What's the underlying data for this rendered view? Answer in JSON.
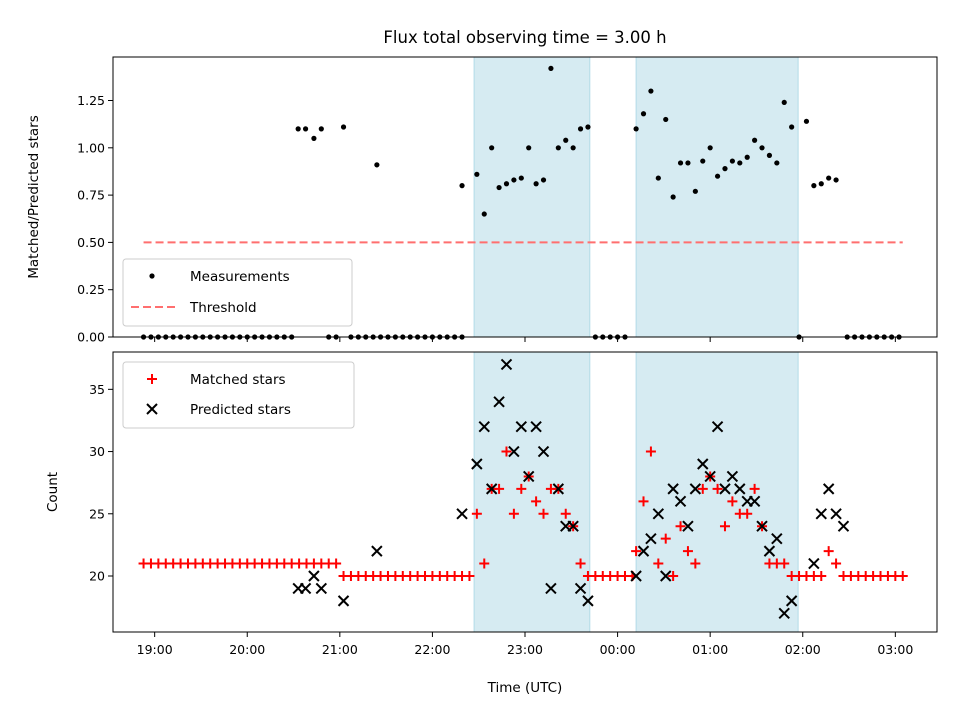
{
  "chart_data": [
    {
      "type": "scatter",
      "title": "Flux total observing time = 3.00 h",
      "ylabel": "Matched/Predicted stars",
      "ylim": [
        0,
        1.48
      ],
      "xlim": [
        18.55,
        27.45
      ],
      "yticks": [
        0.0,
        0.25,
        0.5,
        0.75,
        1.0,
        1.25
      ],
      "ytick_labels": [
        "0.00",
        "0.25",
        "0.50",
        "0.75",
        "1.00",
        "1.25"
      ],
      "shaded_intervals": [
        [
          22.45,
          23.7
        ],
        [
          24.2,
          25.95
        ]
      ],
      "legend": {
        "position": "lower-left",
        "entries": [
          "Measurements",
          "Threshold"
        ]
      },
      "series": [
        {
          "name": "Measurements",
          "marker": "dot",
          "color": "#000000",
          "points": [
            [
              18.88,
              0
            ],
            [
              18.96,
              0
            ],
            [
              19.04,
              0
            ],
            [
              19.12,
              0
            ],
            [
              19.2,
              0
            ],
            [
              19.28,
              0
            ],
            [
              19.36,
              0
            ],
            [
              19.44,
              0
            ],
            [
              19.52,
              0
            ],
            [
              19.6,
              0
            ],
            [
              19.68,
              0
            ],
            [
              19.76,
              0
            ],
            [
              19.84,
              0
            ],
            [
              19.92,
              0
            ],
            [
              20.0,
              0
            ],
            [
              20.08,
              0
            ],
            [
              20.16,
              0
            ],
            [
              20.24,
              0
            ],
            [
              20.32,
              0
            ],
            [
              20.4,
              0
            ],
            [
              20.48,
              0
            ],
            [
              20.55,
              1.1
            ],
            [
              20.63,
              1.1
            ],
            [
              20.72,
              1.05
            ],
            [
              20.8,
              1.1
            ],
            [
              20.88,
              0
            ],
            [
              20.96,
              0
            ],
            [
              21.04,
              1.11
            ],
            [
              21.12,
              0
            ],
            [
              21.2,
              0
            ],
            [
              21.28,
              0
            ],
            [
              21.36,
              0
            ],
            [
              21.4,
              0.91
            ],
            [
              21.44,
              0
            ],
            [
              21.52,
              0
            ],
            [
              21.6,
              0
            ],
            [
              21.68,
              0
            ],
            [
              21.76,
              0
            ],
            [
              21.84,
              0
            ],
            [
              21.92,
              0
            ],
            [
              22.0,
              0
            ],
            [
              22.08,
              0
            ],
            [
              22.16,
              0
            ],
            [
              22.24,
              0
            ],
            [
              22.32,
              0
            ],
            [
              22.32,
              0.8
            ],
            [
              22.48,
              0.86
            ],
            [
              22.56,
              0.65
            ],
            [
              22.64,
              1.0
            ],
            [
              22.72,
              0.79
            ],
            [
              22.8,
              0.81
            ],
            [
              22.88,
              0.83
            ],
            [
              22.96,
              0.84
            ],
            [
              23.04,
              1.0
            ],
            [
              23.12,
              0.81
            ],
            [
              23.2,
              0.83
            ],
            [
              23.28,
              1.42
            ],
            [
              23.36,
              1.0
            ],
            [
              23.44,
              1.04
            ],
            [
              23.52,
              1.0
            ],
            [
              23.6,
              1.1
            ],
            [
              23.68,
              1.11
            ],
            [
              23.76,
              0
            ],
            [
              23.84,
              0
            ],
            [
              23.92,
              0
            ],
            [
              24.0,
              0
            ],
            [
              24.08,
              0
            ],
            [
              24.2,
              1.1
            ],
            [
              24.28,
              1.18
            ],
            [
              24.36,
              1.3
            ],
            [
              24.44,
              0.84
            ],
            [
              24.52,
              1.15
            ],
            [
              24.6,
              0.74
            ],
            [
              24.68,
              0.92
            ],
            [
              24.76,
              0.92
            ],
            [
              24.84,
              0.77
            ],
            [
              24.92,
              0.93
            ],
            [
              25.0,
              1.0
            ],
            [
              25.08,
              0.85
            ],
            [
              25.16,
              0.89
            ],
            [
              25.24,
              0.93
            ],
            [
              25.32,
              0.92
            ],
            [
              25.4,
              0.95
            ],
            [
              25.48,
              1.04
            ],
            [
              25.56,
              1.0
            ],
            [
              25.64,
              0.96
            ],
            [
              25.72,
              0.92
            ],
            [
              25.8,
              1.24
            ],
            [
              25.88,
              1.11
            ],
            [
              25.96,
              0
            ],
            [
              26.04,
              1.14
            ],
            [
              26.12,
              0.8
            ],
            [
              26.2,
              0.81
            ],
            [
              26.28,
              0.84
            ],
            [
              26.36,
              0.83
            ],
            [
              26.48,
              0
            ],
            [
              26.56,
              0
            ],
            [
              26.64,
              0
            ],
            [
              26.72,
              0
            ],
            [
              26.8,
              0
            ],
            [
              26.88,
              0
            ],
            [
              26.96,
              0
            ],
            [
              27.04,
              0
            ]
          ]
        },
        {
          "name": "Threshold",
          "style": "dashed",
          "color": "#ff6f6f",
          "x": [
            18.88,
            27.08
          ],
          "y": [
            0.5,
            0.5
          ]
        }
      ]
    },
    {
      "type": "scatter",
      "xlabel": "Time (UTC)",
      "ylabel": "Count",
      "ylim": [
        15.5,
        38
      ],
      "xlim": [
        18.55,
        27.45
      ],
      "yticks": [
        20,
        25,
        30,
        35
      ],
      "ytick_labels": [
        "20",
        "25",
        "30",
        "35"
      ],
      "xticks": [
        19,
        20,
        21,
        22,
        23,
        24,
        25,
        26,
        27
      ],
      "xtick_labels": [
        "19:00",
        "20:00",
        "21:00",
        "22:00",
        "23:00",
        "00:00",
        "01:00",
        "02:00",
        "03:00"
      ],
      "shaded_intervals": [
        [
          22.45,
          23.7
        ],
        [
          24.2,
          25.95
        ]
      ],
      "legend": {
        "position": "top-left",
        "entries": [
          "Matched stars",
          "Predicted stars"
        ]
      },
      "series": [
        {
          "name": "Matched stars",
          "marker": "plus",
          "color": "#ff0000",
          "points": [
            [
              18.88,
              21
            ],
            [
              18.96,
              21
            ],
            [
              19.04,
              21
            ],
            [
              19.12,
              21
            ],
            [
              19.2,
              21
            ],
            [
              19.28,
              21
            ],
            [
              19.36,
              21
            ],
            [
              19.44,
              21
            ],
            [
              19.52,
              21
            ],
            [
              19.6,
              21
            ],
            [
              19.68,
              21
            ],
            [
              19.76,
              21
            ],
            [
              19.84,
              21
            ],
            [
              19.92,
              21
            ],
            [
              20.0,
              21
            ],
            [
              20.08,
              21
            ],
            [
              20.16,
              21
            ],
            [
              20.24,
              21
            ],
            [
              20.32,
              21
            ],
            [
              20.4,
              21
            ],
            [
              20.48,
              21
            ],
            [
              20.56,
              21
            ],
            [
              20.64,
              21
            ],
            [
              20.72,
              21
            ],
            [
              20.8,
              21
            ],
            [
              20.88,
              21
            ],
            [
              20.96,
              21
            ],
            [
              21.04,
              20
            ],
            [
              21.12,
              20
            ],
            [
              21.2,
              20
            ],
            [
              21.28,
              20
            ],
            [
              21.36,
              20
            ],
            [
              21.44,
              20
            ],
            [
              21.52,
              20
            ],
            [
              21.6,
              20
            ],
            [
              21.68,
              20
            ],
            [
              21.76,
              20
            ],
            [
              21.84,
              20
            ],
            [
              21.92,
              20
            ],
            [
              22.0,
              20
            ],
            [
              22.08,
              20
            ],
            [
              22.16,
              20
            ],
            [
              22.24,
              20
            ],
            [
              22.32,
              20
            ],
            [
              22.4,
              20
            ],
            [
              22.48,
              25
            ],
            [
              22.56,
              21
            ],
            [
              22.64,
              27
            ],
            [
              22.72,
              27
            ],
            [
              22.8,
              30
            ],
            [
              22.88,
              25
            ],
            [
              22.96,
              27
            ],
            [
              23.04,
              28
            ],
            [
              23.12,
              26
            ],
            [
              23.2,
              25
            ],
            [
              23.28,
              27
            ],
            [
              23.36,
              27
            ],
            [
              23.44,
              25
            ],
            [
              23.52,
              24
            ],
            [
              23.6,
              21
            ],
            [
              23.68,
              20
            ],
            [
              23.76,
              20
            ],
            [
              23.84,
              20
            ],
            [
              23.92,
              20
            ],
            [
              24.0,
              20
            ],
            [
              24.08,
              20
            ],
            [
              24.16,
              20
            ],
            [
              24.2,
              22
            ],
            [
              24.28,
              26
            ],
            [
              24.36,
              30
            ],
            [
              24.44,
              21
            ],
            [
              24.52,
              23
            ],
            [
              24.6,
              20
            ],
            [
              24.68,
              24
            ],
            [
              24.76,
              22
            ],
            [
              24.84,
              21
            ],
            [
              24.92,
              27
            ],
            [
              25.0,
              28
            ],
            [
              25.08,
              27
            ],
            [
              25.16,
              24
            ],
            [
              25.24,
              26
            ],
            [
              25.32,
              25
            ],
            [
              25.4,
              25
            ],
            [
              25.48,
              27
            ],
            [
              25.56,
              24
            ],
            [
              25.64,
              21
            ],
            [
              25.72,
              21
            ],
            [
              25.8,
              21
            ],
            [
              25.88,
              20
            ],
            [
              25.96,
              20
            ],
            [
              26.04,
              20
            ],
            [
              26.12,
              20
            ],
            [
              26.2,
              20
            ],
            [
              26.28,
              22
            ],
            [
              26.36,
              21
            ],
            [
              26.44,
              20
            ],
            [
              26.52,
              20
            ],
            [
              26.6,
              20
            ],
            [
              26.68,
              20
            ],
            [
              26.76,
              20
            ],
            [
              26.84,
              20
            ],
            [
              26.92,
              20
            ],
            [
              27.0,
              20
            ],
            [
              27.08,
              20
            ]
          ]
        },
        {
          "name": "Predicted stars",
          "marker": "x",
          "color": "#000000",
          "points": [
            [
              20.55,
              19
            ],
            [
              20.63,
              19
            ],
            [
              20.72,
              20
            ],
            [
              20.8,
              19
            ],
            [
              21.04,
              18
            ],
            [
              21.4,
              22
            ],
            [
              22.32,
              25
            ],
            [
              22.48,
              29
            ],
            [
              22.56,
              32
            ],
            [
              22.64,
              27
            ],
            [
              22.72,
              34
            ],
            [
              22.8,
              37
            ],
            [
              22.88,
              30
            ],
            [
              22.96,
              32
            ],
            [
              23.04,
              28
            ],
            [
              23.12,
              32
            ],
            [
              23.2,
              30
            ],
            [
              23.28,
              19
            ],
            [
              23.36,
              27
            ],
            [
              23.44,
              24
            ],
            [
              23.52,
              24
            ],
            [
              23.6,
              19
            ],
            [
              23.68,
              18
            ],
            [
              24.2,
              20
            ],
            [
              24.28,
              22
            ],
            [
              24.36,
              23
            ],
            [
              24.44,
              25
            ],
            [
              24.52,
              20
            ],
            [
              24.6,
              27
            ],
            [
              24.68,
              26
            ],
            [
              24.76,
              24
            ],
            [
              24.84,
              27
            ],
            [
              24.92,
              29
            ],
            [
              25.0,
              28
            ],
            [
              25.08,
              32
            ],
            [
              25.16,
              27
            ],
            [
              25.24,
              28
            ],
            [
              25.32,
              27
            ],
            [
              25.4,
              26
            ],
            [
              25.48,
              26
            ],
            [
              25.56,
              24
            ],
            [
              25.64,
              22
            ],
            [
              25.72,
              23
            ],
            [
              25.8,
              17
            ],
            [
              25.88,
              18
            ],
            [
              26.12,
              21
            ],
            [
              26.2,
              25
            ],
            [
              26.28,
              27
            ],
            [
              26.36,
              25
            ],
            [
              26.44,
              24
            ]
          ]
        }
      ]
    }
  ]
}
